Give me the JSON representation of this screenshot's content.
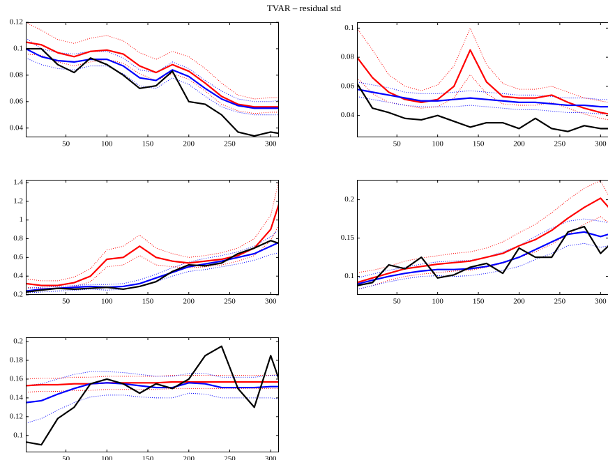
{
  "title": "TVAR – residual std",
  "chart_data": [
    {
      "type": "line",
      "x": [
        1,
        20,
        40,
        60,
        80,
        100,
        120,
        140,
        160,
        180,
        200,
        220,
        240,
        260,
        280,
        300,
        310
      ],
      "xlim": [
        1,
        310
      ],
      "xticks": [
        50,
        100,
        150,
        200,
        250,
        300
      ],
      "ylim": [
        0.033,
        0.12
      ],
      "yticks": [
        0.04,
        0.06,
        0.08,
        0.1,
        0.12
      ],
      "series": [
        {
          "color": "#ff0000",
          "style": "dotted",
          "values": [
            0.12,
            0.114,
            0.107,
            0.104,
            0.108,
            0.11,
            0.106,
            0.097,
            0.092,
            0.098,
            0.094,
            0.085,
            0.074,
            0.065,
            0.062,
            0.063,
            0.063
          ]
        },
        {
          "color": "#ff0000",
          "style": "dotted",
          "values": [
            0.096,
            0.095,
            0.09,
            0.087,
            0.09,
            0.092,
            0.089,
            0.081,
            0.076,
            0.081,
            0.077,
            0.068,
            0.058,
            0.053,
            0.051,
            0.052,
            0.052
          ]
        },
        {
          "color": "#0000ff",
          "style": "dotted",
          "values": [
            0.108,
            0.1,
            0.097,
            0.096,
            0.098,
            0.098,
            0.093,
            0.084,
            0.082,
            0.09,
            0.085,
            0.076,
            0.068,
            0.062,
            0.06,
            0.06,
            0.061
          ]
        },
        {
          "color": "#0000ff",
          "style": "dotted",
          "values": [
            0.093,
            0.088,
            0.085,
            0.084,
            0.087,
            0.087,
            0.081,
            0.072,
            0.07,
            0.078,
            0.073,
            0.064,
            0.056,
            0.052,
            0.05,
            0.05,
            0.05
          ]
        },
        {
          "color": "#ff0000",
          "style": "solid",
          "values": [
            0.105,
            0.103,
            0.097,
            0.094,
            0.098,
            0.099,
            0.096,
            0.087,
            0.082,
            0.088,
            0.083,
            0.074,
            0.064,
            0.058,
            0.056,
            0.056,
            0.056
          ]
        },
        {
          "color": "#0000ff",
          "style": "solid",
          "values": [
            0.1,
            0.094,
            0.091,
            0.09,
            0.092,
            0.092,
            0.087,
            0.078,
            0.076,
            0.084,
            0.079,
            0.07,
            0.062,
            0.057,
            0.055,
            0.055,
            0.055
          ]
        },
        {
          "color": "#000000",
          "style": "solid",
          "values": [
            0.1,
            0.1,
            0.088,
            0.082,
            0.093,
            0.088,
            0.08,
            0.07,
            0.072,
            0.083,
            0.06,
            0.058,
            0.05,
            0.037,
            0.034,
            0.037,
            0.036
          ]
        }
      ]
    },
    {
      "type": "line",
      "x": [
        1,
        20,
        40,
        60,
        80,
        100,
        120,
        140,
        160,
        180,
        200,
        220,
        240,
        260,
        280,
        300,
        310
      ],
      "xlim": [
        1,
        310
      ],
      "xticks": [
        50,
        100,
        150,
        200,
        250,
        300
      ],
      "ylim": [
        0.025,
        0.104
      ],
      "yticks": [
        0.04,
        0.06,
        0.08,
        0.1
      ],
      "series": [
        {
          "color": "#ff0000",
          "style": "dotted",
          "values": [
            0.1,
            0.085,
            0.068,
            0.06,
            0.057,
            0.061,
            0.074,
            0.1,
            0.075,
            0.062,
            0.058,
            0.058,
            0.06,
            0.056,
            0.052,
            0.05,
            0.049
          ]
        },
        {
          "color": "#ff0000",
          "style": "dotted",
          "values": [
            0.066,
            0.055,
            0.049,
            0.047,
            0.045,
            0.046,
            0.052,
            0.068,
            0.055,
            0.048,
            0.047,
            0.047,
            0.049,
            0.045,
            0.041,
            0.038,
            0.037
          ]
        },
        {
          "color": "#0000ff",
          "style": "dotted",
          "values": [
            0.063,
            0.061,
            0.059,
            0.056,
            0.055,
            0.055,
            0.056,
            0.057,
            0.056,
            0.055,
            0.054,
            0.054,
            0.053,
            0.052,
            0.052,
            0.051,
            0.051
          ]
        },
        {
          "color": "#0000ff",
          "style": "dotted",
          "values": [
            0.053,
            0.051,
            0.049,
            0.047,
            0.046,
            0.046,
            0.046,
            0.047,
            0.046,
            0.045,
            0.044,
            0.044,
            0.043,
            0.042,
            0.042,
            0.041,
            0.041
          ]
        },
        {
          "color": "#ff0000",
          "style": "solid",
          "values": [
            0.08,
            0.066,
            0.056,
            0.051,
            0.049,
            0.051,
            0.06,
            0.085,
            0.063,
            0.053,
            0.052,
            0.052,
            0.054,
            0.049,
            0.045,
            0.042,
            0.041
          ]
        },
        {
          "color": "#0000ff",
          "style": "solid",
          "values": [
            0.058,
            0.056,
            0.054,
            0.052,
            0.05,
            0.05,
            0.051,
            0.052,
            0.051,
            0.05,
            0.049,
            0.049,
            0.048,
            0.047,
            0.047,
            0.046,
            0.046
          ]
        },
        {
          "color": "#000000",
          "style": "solid",
          "values": [
            0.062,
            0.045,
            0.042,
            0.038,
            0.037,
            0.04,
            0.036,
            0.032,
            0.035,
            0.035,
            0.031,
            0.038,
            0.031,
            0.029,
            0.033,
            0.031,
            0.031
          ]
        }
      ]
    },
    {
      "type": "line",
      "x": [
        1,
        20,
        40,
        60,
        80,
        100,
        120,
        140,
        160,
        180,
        200,
        220,
        240,
        260,
        280,
        300,
        310
      ],
      "xlim": [
        1,
        310
      ],
      "xticks": [
        50,
        100,
        150,
        200,
        250,
        300
      ],
      "ylim": [
        0.2,
        1.43
      ],
      "yticks": [
        0.2,
        0.4,
        0.6,
        0.8,
        1,
        1.2,
        1.4
      ],
      "series": [
        {
          "color": "#ff0000",
          "style": "dotted",
          "values": [
            0.37,
            0.35,
            0.35,
            0.39,
            0.48,
            0.68,
            0.72,
            0.84,
            0.7,
            0.64,
            0.6,
            0.62,
            0.65,
            0.7,
            0.8,
            1.05,
            1.42
          ]
        },
        {
          "color": "#ff0000",
          "style": "dotted",
          "values": [
            0.28,
            0.27,
            0.27,
            0.29,
            0.34,
            0.5,
            0.52,
            0.62,
            0.52,
            0.5,
            0.49,
            0.5,
            0.52,
            0.56,
            0.62,
            0.78,
            0.95
          ]
        },
        {
          "color": "#0000ff",
          "style": "dotted",
          "values": [
            0.27,
            0.28,
            0.29,
            0.3,
            0.31,
            0.31,
            0.32,
            0.36,
            0.42,
            0.49,
            0.55,
            0.59,
            0.62,
            0.66,
            0.72,
            0.82,
            0.9
          ]
        },
        {
          "color": "#0000ff",
          "style": "dotted",
          "values": [
            0.22,
            0.23,
            0.24,
            0.25,
            0.26,
            0.25,
            0.26,
            0.29,
            0.34,
            0.4,
            0.45,
            0.47,
            0.5,
            0.53,
            0.57,
            0.63,
            0.65
          ]
        },
        {
          "color": "#ff0000",
          "style": "solid",
          "values": [
            0.32,
            0.3,
            0.3,
            0.33,
            0.4,
            0.58,
            0.6,
            0.72,
            0.6,
            0.56,
            0.54,
            0.56,
            0.58,
            0.62,
            0.7,
            0.9,
            1.17
          ]
        },
        {
          "color": "#0000ff",
          "style": "solid",
          "values": [
            0.24,
            0.26,
            0.27,
            0.28,
            0.29,
            0.28,
            0.29,
            0.32,
            0.38,
            0.44,
            0.5,
            0.53,
            0.56,
            0.6,
            0.64,
            0.72,
            0.76
          ]
        },
        {
          "color": "#000000",
          "style": "solid",
          "values": [
            0.23,
            0.25,
            0.27,
            0.26,
            0.27,
            0.28,
            0.26,
            0.29,
            0.34,
            0.45,
            0.52,
            0.51,
            0.54,
            0.64,
            0.7,
            0.78,
            0.75
          ]
        }
      ]
    },
    {
      "type": "line",
      "x": [
        1,
        20,
        40,
        60,
        80,
        100,
        120,
        140,
        160,
        180,
        200,
        220,
        240,
        260,
        280,
        300,
        310
      ],
      "xlim": [
        1,
        310
      ],
      "xticks": [
        50,
        100,
        150,
        200,
        250,
        300
      ],
      "ylim": [
        0.076,
        0.226
      ],
      "yticks": [
        0.1,
        0.15,
        0.2
      ],
      "series": [
        {
          "color": "#ff0000",
          "style": "dotted",
          "values": [
            0.105,
            0.108,
            0.113,
            0.12,
            0.124,
            0.127,
            0.13,
            0.132,
            0.137,
            0.145,
            0.157,
            0.168,
            0.183,
            0.2,
            0.215,
            0.225,
            0.205
          ]
        },
        {
          "color": "#ff0000",
          "style": "dotted",
          "values": [
            0.083,
            0.088,
            0.095,
            0.1,
            0.103,
            0.105,
            0.107,
            0.108,
            0.112,
            0.117,
            0.125,
            0.132,
            0.142,
            0.155,
            0.168,
            0.178,
            0.17
          ]
        },
        {
          "color": "#0000ff",
          "style": "dotted",
          "values": [
            0.098,
            0.103,
            0.108,
            0.112,
            0.116,
            0.119,
            0.12,
            0.121,
            0.125,
            0.132,
            0.14,
            0.152,
            0.163,
            0.172,
            0.175,
            0.172,
            0.17
          ]
        },
        {
          "color": "#0000ff",
          "style": "dotted",
          "values": [
            0.083,
            0.088,
            0.093,
            0.097,
            0.1,
            0.101,
            0.1,
            0.101,
            0.104,
            0.108,
            0.113,
            0.122,
            0.13,
            0.14,
            0.143,
            0.138,
            0.14
          ]
        },
        {
          "color": "#ff0000",
          "style": "solid",
          "values": [
            0.092,
            0.098,
            0.104,
            0.11,
            0.113,
            0.116,
            0.118,
            0.12,
            0.125,
            0.13,
            0.14,
            0.148,
            0.16,
            0.176,
            0.19,
            0.202,
            0.19
          ]
        },
        {
          "color": "#0000ff",
          "style": "solid",
          "values": [
            0.09,
            0.095,
            0.1,
            0.104,
            0.107,
            0.109,
            0.109,
            0.11,
            0.113,
            0.118,
            0.125,
            0.135,
            0.145,
            0.155,
            0.158,
            0.152,
            0.155
          ]
        },
        {
          "color": "#000000",
          "style": "solid",
          "values": [
            0.088,
            0.092,
            0.115,
            0.11,
            0.125,
            0.098,
            0.102,
            0.112,
            0.117,
            0.104,
            0.137,
            0.125,
            0.125,
            0.158,
            0.165,
            0.13,
            0.14
          ]
        }
      ]
    },
    {
      "type": "line",
      "x": [
        1,
        20,
        40,
        60,
        80,
        100,
        120,
        140,
        160,
        180,
        200,
        220,
        240,
        260,
        280,
        300,
        310
      ],
      "xlim": [
        1,
        310
      ],
      "xticks": [
        50,
        100,
        150,
        200,
        250,
        300
      ],
      "ylim": [
        0.082,
        0.2045
      ],
      "yticks": [
        0.1,
        0.12,
        0.14,
        0.16,
        0.18,
        0.2
      ],
      "series": [
        {
          "color": "#ff0000",
          "style": "dotted",
          "values": [
            0.16,
            0.161,
            0.161,
            0.162,
            0.162,
            0.163,
            0.163,
            0.163,
            0.163,
            0.164,
            0.164,
            0.164,
            0.164,
            0.164,
            0.164,
            0.164,
            0.165
          ]
        },
        {
          "color": "#ff0000",
          "style": "dotted",
          "values": [
            0.146,
            0.147,
            0.147,
            0.148,
            0.148,
            0.149,
            0.149,
            0.149,
            0.149,
            0.15,
            0.15,
            0.15,
            0.15,
            0.15,
            0.15,
            0.15,
            0.15
          ]
        },
        {
          "color": "#0000ff",
          "style": "dotted",
          "values": [
            0.153,
            0.155,
            0.16,
            0.165,
            0.168,
            0.168,
            0.167,
            0.165,
            0.163,
            0.163,
            0.166,
            0.166,
            0.162,
            0.162,
            0.162,
            0.164,
            0.164
          ]
        },
        {
          "color": "#0000ff",
          "style": "dotted",
          "values": [
            0.113,
            0.118,
            0.127,
            0.135,
            0.141,
            0.143,
            0.143,
            0.141,
            0.14,
            0.14,
            0.145,
            0.144,
            0.14,
            0.14,
            0.14,
            0.14,
            0.139
          ]
        },
        {
          "color": "#ff0000",
          "style": "solid",
          "values": [
            0.153,
            0.154,
            0.154,
            0.155,
            0.155,
            0.156,
            0.156,
            0.156,
            0.156,
            0.157,
            0.157,
            0.157,
            0.157,
            0.157,
            0.157,
            0.157,
            0.157
          ]
        },
        {
          "color": "#0000ff",
          "style": "solid",
          "values": [
            0.135,
            0.137,
            0.144,
            0.15,
            0.155,
            0.156,
            0.155,
            0.153,
            0.151,
            0.151,
            0.156,
            0.155,
            0.151,
            0.151,
            0.151,
            0.152,
            0.152
          ]
        },
        {
          "color": "#000000",
          "style": "solid",
          "values": [
            0.093,
            0.09,
            0.118,
            0.13,
            0.155,
            0.16,
            0.155,
            0.145,
            0.155,
            0.15,
            0.16,
            0.185,
            0.195,
            0.15,
            0.13,
            0.185,
            0.16
          ]
        }
      ]
    }
  ]
}
